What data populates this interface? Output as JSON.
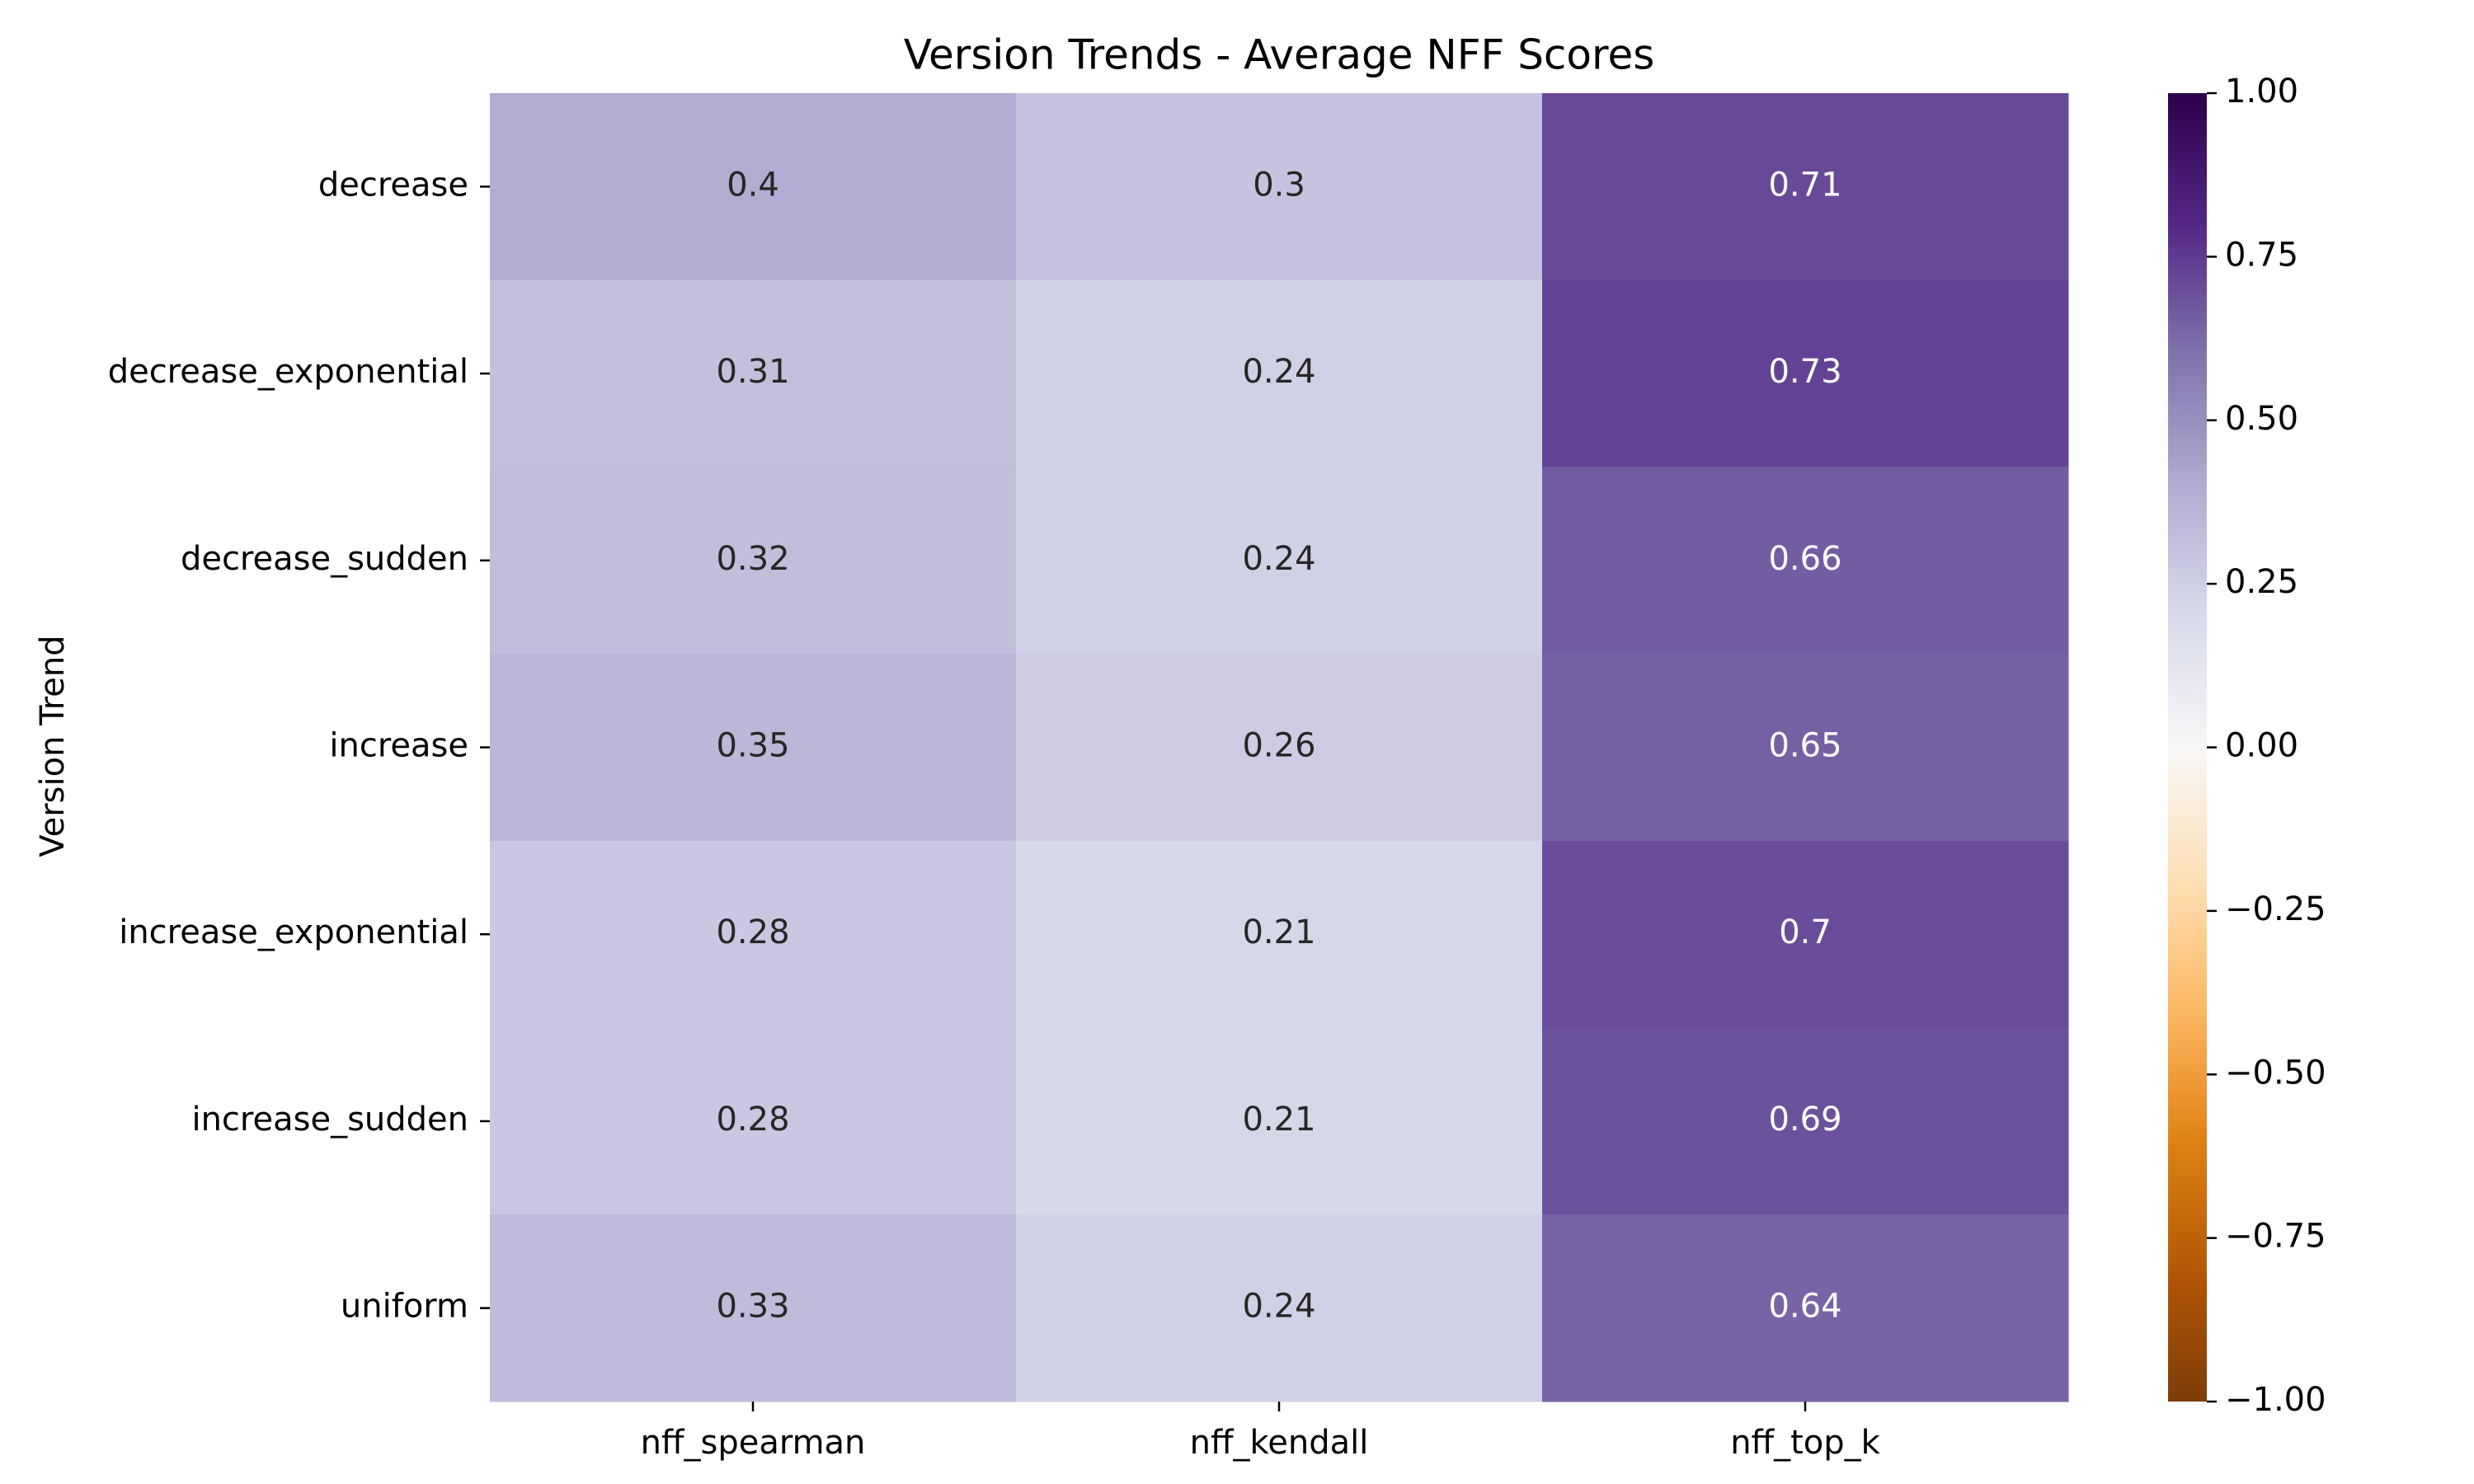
{
  "chart_data": {
    "type": "heatmap",
    "title": "Version Trends - Average NFF Scores",
    "xlabel": "",
    "ylabel": "Version Trend",
    "columns": [
      "nff_spearman",
      "nff_kendall",
      "nff_top_k"
    ],
    "rows": [
      "decrease",
      "decrease_exponential",
      "decrease_sudden",
      "increase",
      "increase_exponential",
      "increase_sudden",
      "uniform"
    ],
    "values": [
      [
        0.4,
        0.3,
        0.71
      ],
      [
        0.31,
        0.24,
        0.73
      ],
      [
        0.32,
        0.24,
        0.66
      ],
      [
        0.35,
        0.26,
        0.65
      ],
      [
        0.28,
        0.21,
        0.7
      ],
      [
        0.28,
        0.21,
        0.69
      ],
      [
        0.33,
        0.24,
        0.64
      ]
    ],
    "value_labels": [
      [
        "0.4",
        "0.3",
        "0.71"
      ],
      [
        "0.31",
        "0.24",
        "0.73"
      ],
      [
        "0.32",
        "0.24",
        "0.66"
      ],
      [
        "0.35",
        "0.26",
        "0.65"
      ],
      [
        "0.28",
        "0.21",
        "0.7"
      ],
      [
        "0.28",
        "0.21",
        "0.69"
      ],
      [
        "0.33",
        "0.24",
        "0.64"
      ]
    ],
    "colorbar": {
      "range": [
        -1.0,
        1.0
      ],
      "ticks": [
        1.0,
        0.75,
        0.5,
        0.25,
        0.0,
        -0.25,
        -0.5,
        -0.75,
        -1.0
      ],
      "tick_labels": [
        "1.00",
        "0.75",
        "0.50",
        "0.25",
        "0.00",
        "−0.25",
        "−0.50",
        "−0.75",
        "−1.00"
      ],
      "colormap": "PuOr",
      "color_stops": [
        "#7f3b08",
        "#b35806",
        "#e08214",
        "#fdb863",
        "#fee0b6",
        "#f7f7f7",
        "#d8daeb",
        "#b2abd2",
        "#8073ac",
        "#542788",
        "#2d004b"
      ]
    }
  }
}
